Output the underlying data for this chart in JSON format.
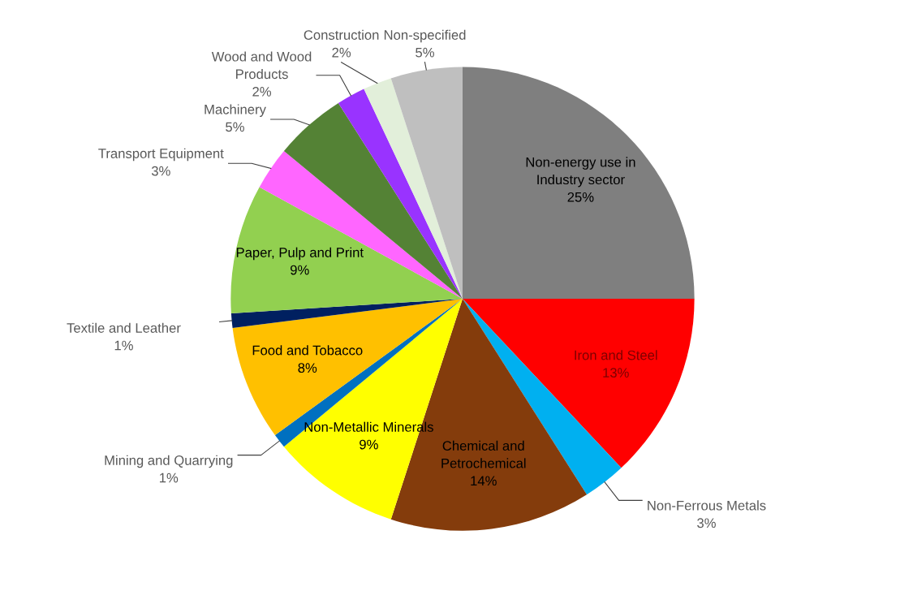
{
  "chart_data": {
    "type": "pie",
    "value_labels": [
      "25%",
      "13%",
      "3%",
      "14%",
      "9%",
      "1%",
      "8%",
      "1%",
      "9%",
      "3%",
      "5%",
      "2%",
      "2%",
      "5%"
    ],
    "categories": [
      "Non-energy use in\nIndustry sector",
      "Iron and Steel",
      "Non-Ferrous Metals",
      "Chemical and\nPetrochemical",
      "Non-Metallic Minerals",
      "Mining and Quarrying",
      "Food and Tobacco",
      "Textile and Leather",
      "Paper, Pulp and Print",
      "Transport Equipment",
      "Machinery",
      "Wood and Wood\nProducts",
      "Construction",
      "Non-specified"
    ],
    "values": [
      25,
      13,
      3,
      14,
      9,
      1,
      8,
      1,
      9,
      3,
      5,
      2,
      2,
      5
    ],
    "colors": [
      "#7f7f7f",
      "#ff0000",
      "#00b0f0",
      "#843c0c",
      "#ffff00",
      "#0070c0",
      "#ffc000",
      "#002060",
      "#92d050",
      "#ff66ff",
      "#548235",
      "#9933ff",
      "#e2efda",
      "#bfbfbf"
    ]
  }
}
